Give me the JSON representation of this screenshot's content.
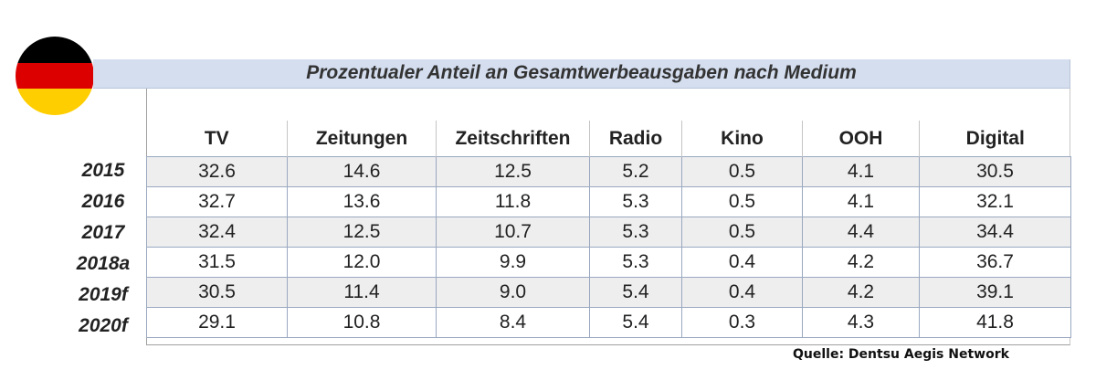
{
  "title": "Prozentualer Anteil an Gesamtwerbeausgaben nach Medium",
  "source": "Quelle: Dentsu Aegis Network",
  "flag": {
    "colors": [
      "#000000",
      "#dd0000",
      "#ffce00"
    ]
  },
  "chart_data": {
    "type": "table",
    "title": "Prozentualer Anteil an Gesamtwerbeausgaben nach Medium",
    "columns": [
      "TV",
      "Zeitungen",
      "Zeitschriften",
      "Radio",
      "Kino",
      "OOH",
      "Digital"
    ],
    "rows": [
      {
        "year": "2015",
        "values": [
          "32.6",
          "14.6",
          "12.5",
          "5.2",
          "0.5",
          "4.1",
          "30.5"
        ]
      },
      {
        "year": "2016",
        "values": [
          "32.7",
          "13.6",
          "11.8",
          "5.3",
          "0.5",
          "4.1",
          "32.1"
        ]
      },
      {
        "year": "2017",
        "values": [
          "32.4",
          "12.5",
          "10.7",
          "5.3",
          "0.5",
          "4.4",
          "34.4"
        ]
      },
      {
        "year": "2018a",
        "values": [
          "31.5",
          "12.0",
          "9.9",
          "5.3",
          "0.4",
          "4.2",
          "36.7"
        ]
      },
      {
        "year": "2019f",
        "values": [
          "30.5",
          "11.4",
          "9.0",
          "5.4",
          "0.4",
          "4.2",
          "39.1"
        ]
      },
      {
        "year": "2020f",
        "values": [
          "29.1",
          "10.8",
          "8.4",
          "5.4",
          "0.3",
          "4.3",
          "41.8"
        ]
      }
    ]
  }
}
